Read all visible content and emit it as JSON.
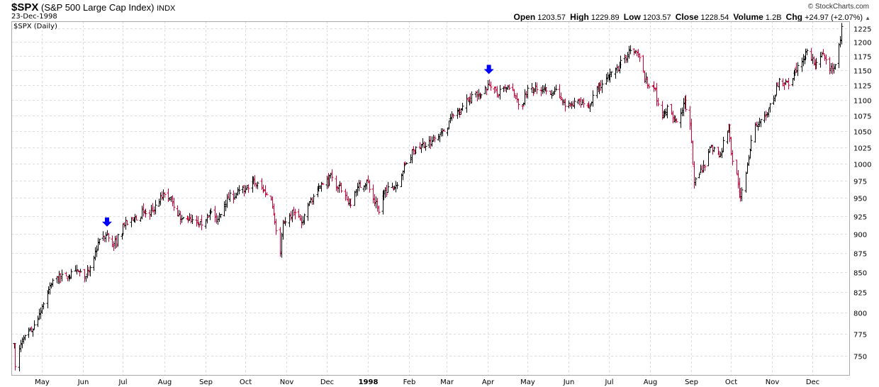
{
  "header": {
    "symbol": "$SPX",
    "name": "(S&P 500 Large Cap Index)",
    "exchange": "INDX",
    "date": "23-Dec-1998",
    "copyright": "© StockCharts.com"
  },
  "quote": {
    "open_label": "Open",
    "open": "1203.57",
    "high_label": "High",
    "high": "1229.89",
    "low_label": "Low",
    "low": "1203.57",
    "close_label": "Close",
    "close": "1228.54",
    "volume_label": "Volume",
    "volume": "1.2B",
    "chg_label": "Chg",
    "chg": "+24.97 (+2.07%)",
    "chg_icon": "up-triangle-icon"
  },
  "chart_label": "$SPX (Daily)",
  "chart_data": {
    "type": "ohlc-bar",
    "y_scale": "log",
    "ylim": [
      725,
      1240
    ],
    "y_ticks": [
      750,
      775,
      800,
      825,
      850,
      875,
      900,
      925,
      950,
      975,
      1000,
      1025,
      1050,
      1075,
      1100,
      1125,
      1150,
      1175,
      1200,
      1225
    ],
    "x_ticks": [
      {
        "label": "May",
        "date": "1997-05-01"
      },
      {
        "label": "Jun",
        "date": "1997-06-01"
      },
      {
        "label": "Jul",
        "date": "1997-07-01"
      },
      {
        "label": "Aug",
        "date": "1997-08-01"
      },
      {
        "label": "Sep",
        "date": "1997-09-01"
      },
      {
        "label": "Oct",
        "date": "1997-10-01"
      },
      {
        "label": "Nov",
        "date": "1997-11-01"
      },
      {
        "label": "Dec",
        "date": "1997-12-01"
      },
      {
        "label": "1998",
        "date": "1998-01-01",
        "bold": true
      },
      {
        "label": "Feb",
        "date": "1998-02-01"
      },
      {
        "label": "Mar",
        "date": "1998-03-01"
      },
      {
        "label": "Apr",
        "date": "1998-04-01"
      },
      {
        "label": "May",
        "date": "1998-05-01"
      },
      {
        "label": "Jun",
        "date": "1998-06-01"
      },
      {
        "label": "Jul",
        "date": "1998-07-01"
      },
      {
        "label": "Aug",
        "date": "1998-08-01"
      },
      {
        "label": "Sep",
        "date": "1998-09-01"
      },
      {
        "label": "Oct",
        "date": "1998-10-01"
      },
      {
        "label": "Nov",
        "date": "1998-11-01"
      },
      {
        "label": "Dec",
        "date": "1998-12-01"
      }
    ],
    "grid": true,
    "up_color": "#000000",
    "down_color": "#cc0033",
    "approx_closes": [
      [
        "1997-04-10",
        764
      ],
      [
        "1997-04-11",
        738
      ],
      [
        "1997-04-15",
        764
      ],
      [
        "1997-04-23",
        778
      ],
      [
        "1997-04-29",
        799
      ],
      [
        "1997-05-05",
        825
      ],
      [
        "1997-05-09",
        840
      ],
      [
        "1997-05-19",
        845
      ],
      [
        "1997-05-29",
        850
      ],
      [
        "1997-06-03",
        845
      ],
      [
        "1997-06-09",
        869
      ],
      [
        "1997-06-13",
        893
      ],
      [
        "1997-06-19",
        900
      ],
      [
        "1997-06-24",
        885
      ],
      [
        "1997-07-02",
        912
      ],
      [
        "1997-07-08",
        920
      ],
      [
        "1997-07-16",
        930
      ],
      [
        "1997-07-21",
        925
      ],
      [
        "1997-07-25",
        940
      ],
      [
        "1997-08-01",
        955
      ],
      [
        "1997-08-07",
        945
      ],
      [
        "1997-08-13",
        920
      ],
      [
        "1997-08-19",
        920
      ],
      [
        "1997-08-27",
        910
      ],
      [
        "1997-09-04",
        930
      ],
      [
        "1997-09-09",
        920
      ],
      [
        "1997-09-17",
        950
      ],
      [
        "1997-09-24",
        955
      ],
      [
        "1997-10-01",
        962
      ],
      [
        "1997-10-06",
        975
      ],
      [
        "1997-10-14",
        962
      ],
      [
        "1997-10-20",
        950
      ],
      [
        "1997-10-27",
        876
      ],
      [
        "1997-10-29",
        915
      ],
      [
        "1997-11-06",
        930
      ],
      [
        "1997-11-12",
        915
      ],
      [
        "1997-11-18",
        945
      ],
      [
        "1997-11-24",
        960
      ],
      [
        "1997-11-28",
        970
      ],
      [
        "1997-12-05",
        980
      ],
      [
        "1997-12-12",
        960
      ],
      [
        "1997-12-19",
        940
      ],
      [
        "1997-12-24",
        965
      ],
      [
        "1997-12-31",
        975
      ],
      [
        "1998-01-09",
        930
      ],
      [
        "1998-01-13",
        960
      ],
      [
        "1998-01-21",
        965
      ],
      [
        "1998-01-29",
        1000
      ],
      [
        "1998-02-06",
        1025
      ],
      [
        "1998-02-18",
        1035
      ],
      [
        "1998-02-27",
        1050
      ],
      [
        "1998-03-06",
        1075
      ],
      [
        "1998-03-17",
        1100
      ],
      [
        "1998-03-25",
        1110
      ],
      [
        "1998-04-02",
        1125
      ],
      [
        "1998-04-08",
        1110
      ],
      [
        "1998-04-17",
        1120
      ],
      [
        "1998-04-27",
        1090
      ],
      [
        "1998-05-01",
        1120
      ],
      [
        "1998-05-11",
        1115
      ],
      [
        "1998-05-21",
        1115
      ],
      [
        "1998-05-29",
        1090
      ],
      [
        "1998-06-08",
        1100
      ],
      [
        "1998-06-16",
        1090
      ],
      [
        "1998-06-24",
        1125
      ],
      [
        "1998-07-01",
        1140
      ],
      [
        "1998-07-09",
        1160
      ],
      [
        "1998-07-17",
        1185
      ],
      [
        "1998-07-23",
        1175
      ],
      [
        "1998-07-28",
        1135
      ],
      [
        "1998-08-04",
        1120
      ],
      [
        "1998-08-10",
        1075
      ],
      [
        "1998-08-14",
        1090
      ],
      [
        "1998-08-21",
        1065
      ],
      [
        "1998-08-27",
        1100
      ],
      [
        "1998-08-31",
        1060
      ],
      [
        "1998-09-03",
        970
      ],
      [
        "1998-09-09",
        990
      ],
      [
        "1998-09-15",
        1025
      ],
      [
        "1998-09-23",
        1015
      ],
      [
        "1998-09-29",
        1060
      ],
      [
        "1998-10-01",
        1015
      ],
      [
        "1998-10-05",
        985
      ],
      [
        "1998-10-08",
        950
      ],
      [
        "1998-10-13",
        1000
      ],
      [
        "1998-10-19",
        1060
      ],
      [
        "1998-10-27",
        1075
      ],
      [
        "1998-11-02",
        1100
      ],
      [
        "1998-11-06",
        1135
      ],
      [
        "1998-11-13",
        1125
      ],
      [
        "1998-11-19",
        1150
      ],
      [
        "1998-11-27",
        1185
      ],
      [
        "1998-12-03",
        1160
      ],
      [
        "1998-12-08",
        1180
      ],
      [
        "1998-12-14",
        1150
      ],
      [
        "1998-12-18",
        1160
      ],
      [
        "1998-12-22",
        1204
      ],
      [
        "1998-12-23",
        1228.54
      ]
    ],
    "markers": [
      {
        "date": "1997-06-19",
        "value": 915,
        "icon": "down-arrow-icon",
        "color": "#0000ff"
      },
      {
        "date": "1998-04-02",
        "value": 1150,
        "icon": "down-arrow-icon",
        "color": "#0000ff"
      }
    ]
  }
}
